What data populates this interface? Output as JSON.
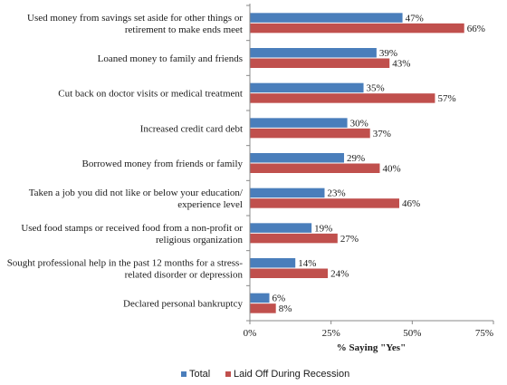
{
  "chart_data": {
    "type": "bar",
    "orientation": "horizontal",
    "categories": [
      [
        "Used money from savings set aside for other things or",
        "retirement to make ends meet"
      ],
      [
        "Loaned money to family and friends"
      ],
      [
        "Cut back on doctor visits or medical treatment"
      ],
      [
        "Increased credit card debt"
      ],
      [
        "Borrowed money from friends or family"
      ],
      [
        "Taken a job you did not like or below your education/",
        "experience level"
      ],
      [
        "Used food stamps or received food from a non-profit or",
        "religious organization"
      ],
      [
        "Sought professional help in the past 12 months for a stress-",
        "related disorder or depression"
      ],
      [
        "Declared personal bankruptcy"
      ]
    ],
    "series": [
      {
        "name": "Total",
        "color": "#4a7ebb",
        "values": [
          47,
          39,
          35,
          30,
          29,
          23,
          19,
          14,
          6
        ]
      },
      {
        "name": "Laid Off During Recession",
        "color": "#c0504d",
        "values": [
          66,
          43,
          57,
          37,
          40,
          46,
          27,
          24,
          8
        ]
      }
    ],
    "value_suffix": "%",
    "xlabel": "% Saying \"Yes\"",
    "xlim": [
      0,
      75
    ],
    "xticks": [
      0,
      25,
      50,
      75
    ],
    "xtick_labels": [
      "0%",
      "25%",
      "50%",
      "75%"
    ],
    "grid": false,
    "legend_position": "bottom"
  }
}
